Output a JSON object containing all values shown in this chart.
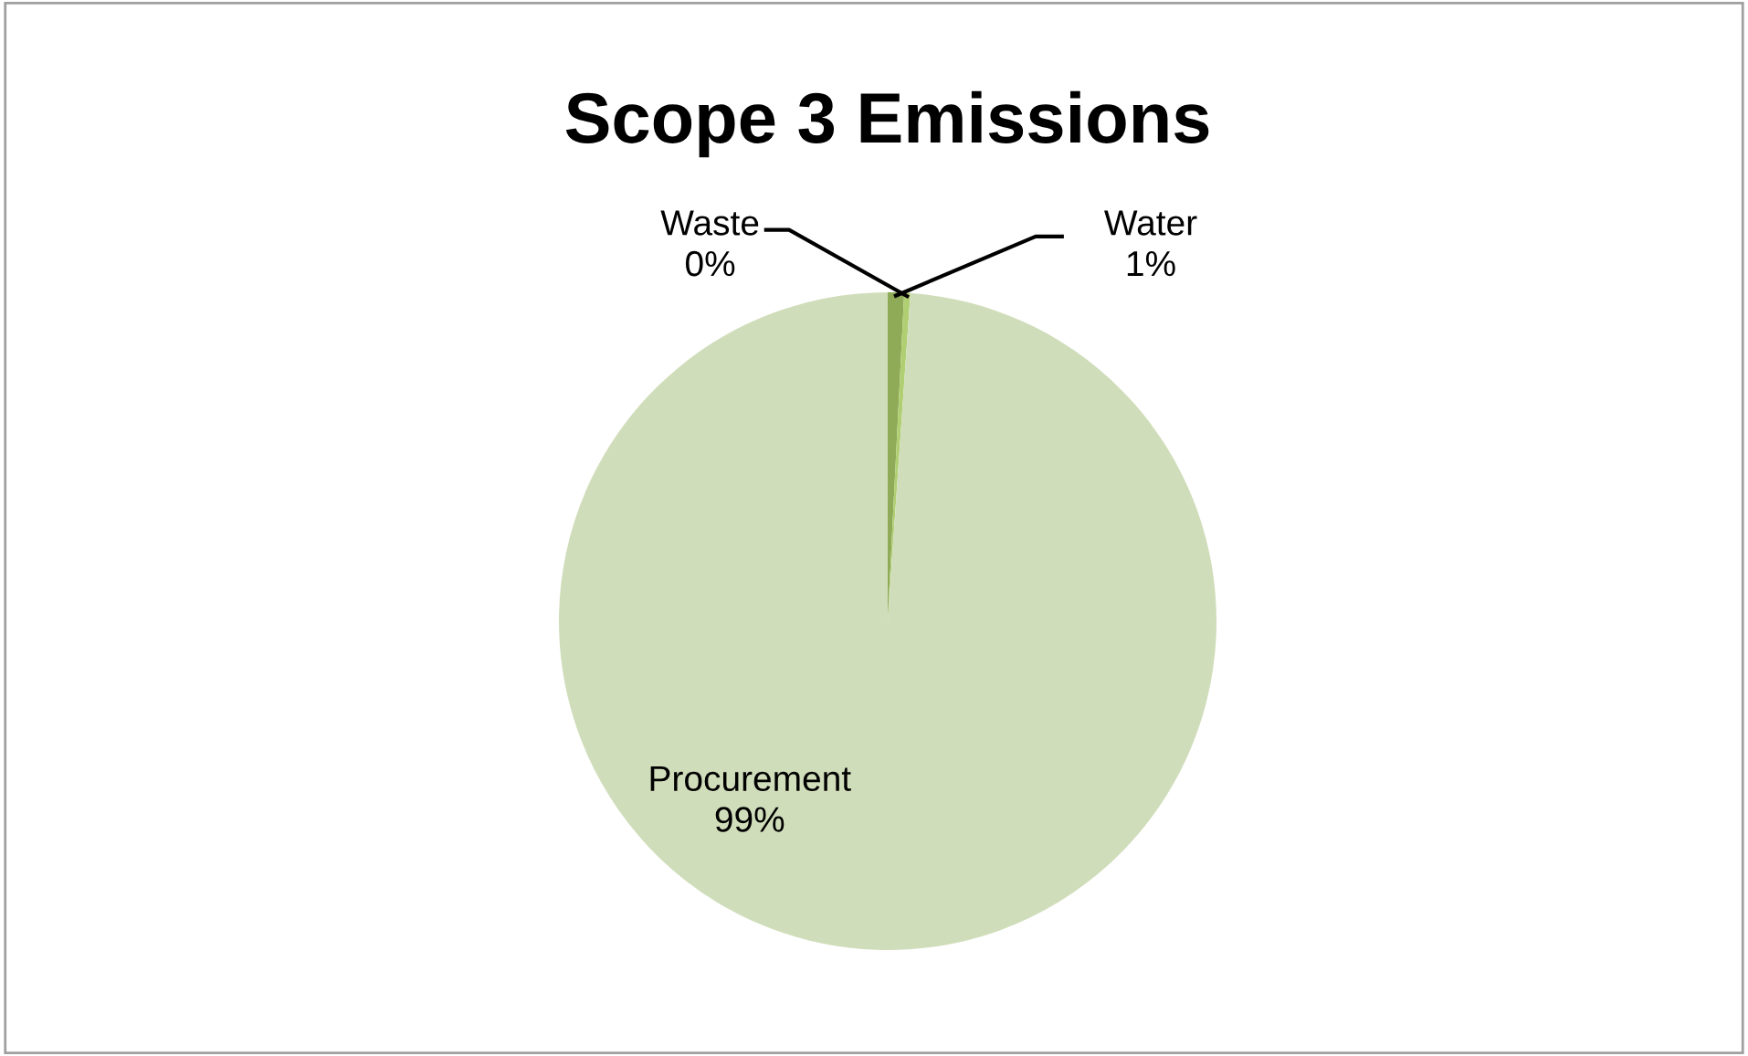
{
  "chart_data": {
    "type": "pie",
    "title": "Scope 3 Emissions",
    "categories": [
      "Water",
      "Waste",
      "Procurement"
    ],
    "values": [
      0.8,
      0.3,
      98.9
    ],
    "value_labels": [
      "1%",
      "0%",
      "99%"
    ],
    "colors": [
      "#8fab58",
      "#b0cf72",
      "#d0ddba"
    ],
    "legend": false
  }
}
